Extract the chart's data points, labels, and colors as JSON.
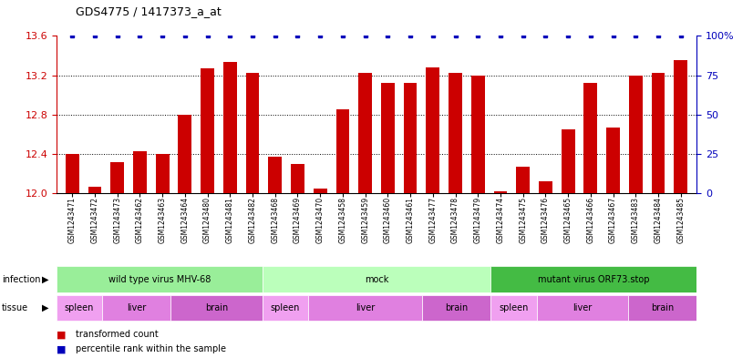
{
  "title": "GDS4775 / 1417373_a_at",
  "samples": [
    "GSM1243471",
    "GSM1243472",
    "GSM1243473",
    "GSM1243462",
    "GSM1243463",
    "GSM1243464",
    "GSM1243480",
    "GSM1243481",
    "GSM1243482",
    "GSM1243468",
    "GSM1243469",
    "GSM1243470",
    "GSM1243458",
    "GSM1243459",
    "GSM1243460",
    "GSM1243461",
    "GSM1243477",
    "GSM1243478",
    "GSM1243479",
    "GSM1243474",
    "GSM1243475",
    "GSM1243476",
    "GSM1243465",
    "GSM1243466",
    "GSM1243467",
    "GSM1243483",
    "GSM1243484",
    "GSM1243485"
  ],
  "transformed_counts": [
    12.4,
    12.07,
    12.32,
    12.43,
    12.4,
    12.8,
    13.27,
    13.33,
    13.22,
    12.37,
    12.3,
    12.05,
    12.85,
    13.22,
    13.12,
    13.12,
    13.28,
    13.22,
    13.2,
    12.02,
    12.27,
    12.12,
    12.65,
    13.12,
    12.67,
    13.2,
    13.22,
    13.35
  ],
  "percentile_ranks": [
    100,
    100,
    100,
    100,
    100,
    100,
    100,
    100,
    100,
    100,
    100,
    100,
    100,
    100,
    100,
    100,
    100,
    100,
    100,
    100,
    100,
    100,
    100,
    100,
    100,
    100,
    100,
    100
  ],
  "ylim_left": [
    12.0,
    13.6
  ],
  "ylim_right": [
    0,
    100
  ],
  "yticks_left": [
    12.0,
    12.4,
    12.8,
    13.2,
    13.6
  ],
  "yticks_right": [
    0,
    25,
    50,
    75,
    100
  ],
  "bar_color": "#cc0000",
  "dot_color": "#0000bb",
  "bg_color": "#ffffff",
  "tick_label_color_left": "#cc0000",
  "tick_label_color_right": "#0000bb",
  "infection_boundaries": [
    [
      0,
      9,
      "wild type virus MHV-68",
      "#99ee99"
    ],
    [
      9,
      19,
      "mock",
      "#bbffbb"
    ],
    [
      19,
      28,
      "mutant virus ORF73.stop",
      "#44bb44"
    ]
  ],
  "tissue_boundaries": [
    [
      0,
      2,
      "spleen",
      "#f0a0f0"
    ],
    [
      2,
      5,
      "liver",
      "#e080e0"
    ],
    [
      5,
      9,
      "brain",
      "#cc66cc"
    ],
    [
      9,
      11,
      "spleen",
      "#f0a0f0"
    ],
    [
      11,
      16,
      "liver",
      "#e080e0"
    ],
    [
      16,
      19,
      "brain",
      "#cc66cc"
    ],
    [
      19,
      21,
      "spleen",
      "#f0a0f0"
    ],
    [
      21,
      25,
      "liver",
      "#e080e0"
    ],
    [
      25,
      28,
      "brain",
      "#cc66cc"
    ]
  ]
}
